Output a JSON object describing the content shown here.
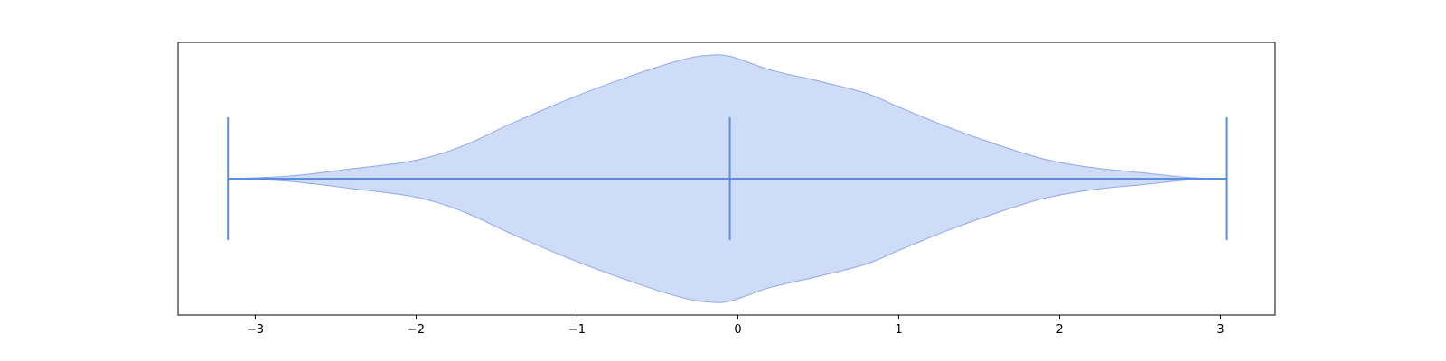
{
  "chart_data": {
    "type": "violin",
    "orientation": "horizontal",
    "title": "",
    "xlabel": "",
    "ylabel": "",
    "xlim": [
      -3.48,
      3.34
    ],
    "xticks": [
      -3,
      -2,
      -1,
      0,
      1,
      2,
      3
    ],
    "xtick_labels": [
      "−3",
      "−2",
      "−1",
      "0",
      "1",
      "2",
      "3"
    ],
    "grid": false,
    "legend": "none",
    "violin": {
      "min": -3.17,
      "median": -0.05,
      "max": 3.04,
      "density_profile": {
        "x": [
          -3.17,
          -2.8,
          -2.4,
          -2.0,
          -1.7,
          -1.4,
          -1.0,
          -0.6,
          -0.35,
          -0.2,
          -0.05,
          0.2,
          0.5,
          0.8,
          1.0,
          1.3,
          1.6,
          1.9,
          2.2,
          2.5,
          2.8,
          3.04
        ],
        "relative_width": [
          0.0,
          0.02,
          0.08,
          0.15,
          0.27,
          0.45,
          0.67,
          0.86,
          0.96,
          0.995,
          0.99,
          0.88,
          0.79,
          0.69,
          0.58,
          0.42,
          0.28,
          0.16,
          0.09,
          0.05,
          0.01,
          0.0
        ]
      }
    },
    "colors": {
      "fill": "#cfdcf7",
      "outline": "#8fa6ec",
      "lines": "#5b8de0",
      "axes": "#000000"
    }
  }
}
